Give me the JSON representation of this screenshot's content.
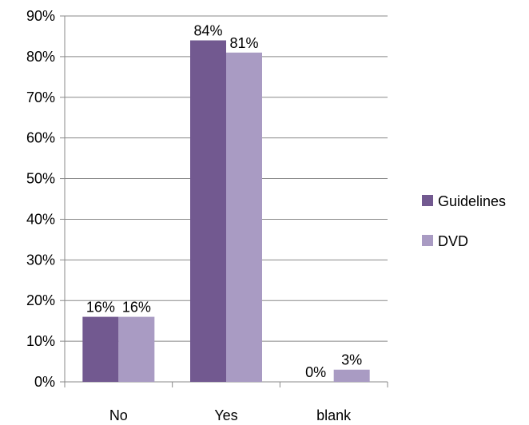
{
  "chart_data": {
    "type": "bar",
    "categories": [
      "No",
      "Yes",
      "blank"
    ],
    "series": [
      {
        "name": "Guidelines",
        "values": [
          16,
          84,
          0
        ],
        "labels": [
          "16%",
          "84%",
          "0%"
        ],
        "color": "#725990"
      },
      {
        "name": "DVD",
        "values": [
          16,
          81,
          3
        ],
        "labels": [
          "16%",
          "81%",
          "3%"
        ],
        "color": "#A99BC3"
      }
    ],
    "y_ticks": [
      "0%",
      "10%",
      "20%",
      "30%",
      "40%",
      "50%",
      "60%",
      "70%",
      "80%",
      "90%"
    ],
    "ylim": [
      0,
      90
    ],
    "ytick_step": 10,
    "grid": true,
    "grid_color": "#888888",
    "legend_position": "right",
    "title": "",
    "xlabel": "",
    "ylabel": ""
  }
}
